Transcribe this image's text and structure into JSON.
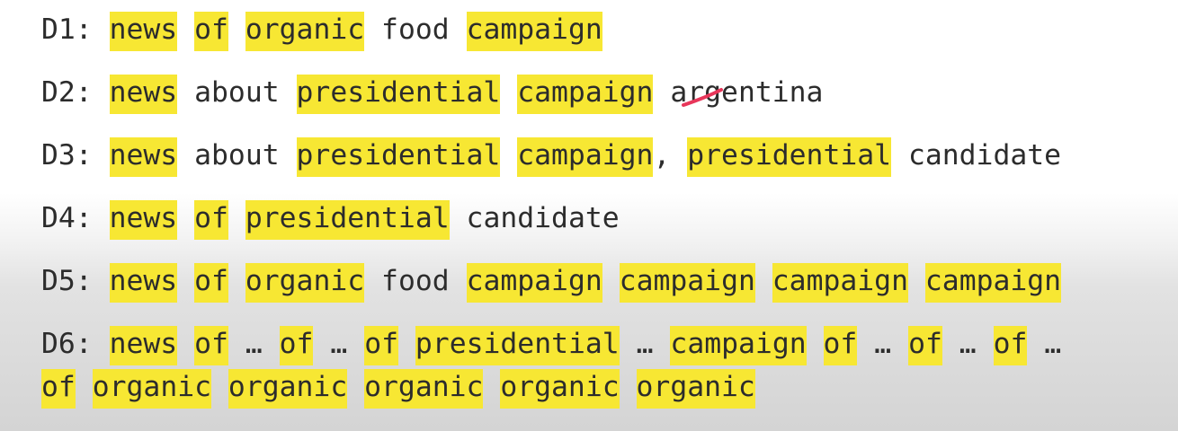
{
  "lines": [
    {
      "label": "D1:",
      "tokens": [
        {
          "t": "news",
          "hl": true
        },
        {
          "t": "of",
          "hl": true
        },
        {
          "t": "organic",
          "hl": true
        },
        {
          "t": "food",
          "hl": false
        },
        {
          "t": "campaign",
          "hl": true
        }
      ]
    },
    {
      "label": "D2:",
      "tokens": [
        {
          "t": "news",
          "hl": true
        },
        {
          "t": "about",
          "hl": false
        },
        {
          "t": "presidential",
          "hl": true
        },
        {
          "t": "campaign",
          "hl": true
        },
        {
          "t": "argentina",
          "hl": false
        }
      ]
    },
    {
      "label": "D3:",
      "tokens": [
        {
          "t": "news",
          "hl": true
        },
        {
          "t": "about",
          "hl": false
        },
        {
          "t": "presidential",
          "hl": true
        },
        {
          "t": "campaign",
          "hl": true,
          "suffix": ","
        },
        {
          "t": "presidential",
          "hl": true
        },
        {
          "t": "candidate",
          "hl": false
        }
      ]
    },
    {
      "label": "D4:",
      "tokens": [
        {
          "t": "news",
          "hl": true
        },
        {
          "t": "of",
          "hl": true
        },
        {
          "t": "presidential",
          "hl": true
        },
        {
          "t": "candidate",
          "hl": false
        }
      ]
    },
    {
      "label": "D5:",
      "tokens": [
        {
          "t": "news",
          "hl": true
        },
        {
          "t": "of",
          "hl": true
        },
        {
          "t": "organic",
          "hl": true
        },
        {
          "t": "food",
          "hl": false
        },
        {
          "t": "campaign",
          "hl": true
        },
        {
          "t": "campaign",
          "hl": true
        },
        {
          "t": "campaign",
          "hl": true
        },
        {
          "t": "campaign",
          "hl": true
        }
      ]
    },
    {
      "label": "D6:",
      "tokens": [
        {
          "t": "news",
          "hl": true
        },
        {
          "t": "of",
          "hl": true
        },
        {
          "t": "…",
          "hl": false
        },
        {
          "t": "of",
          "hl": true
        },
        {
          "t": "…",
          "hl": false
        },
        {
          "t": "of",
          "hl": true
        },
        {
          "t": "presidential",
          "hl": true
        },
        {
          "t": "…",
          "hl": false
        },
        {
          "t": "campaign",
          "hl": true
        },
        {
          "t": "of",
          "hl": true
        },
        {
          "t": "…",
          "hl": false
        },
        {
          "t": "of",
          "hl": true
        },
        {
          "t": "…",
          "hl": false
        },
        {
          "t": "of",
          "hl": true
        },
        {
          "t": "…",
          "hl": false
        }
      ]
    },
    {
      "label": "",
      "tokens": [
        {
          "t": "of",
          "hl": true
        },
        {
          "t": "organic",
          "hl": true
        },
        {
          "t": "organic",
          "hl": true
        },
        {
          "t": "organic",
          "hl": true
        },
        {
          "t": "organic",
          "hl": true
        },
        {
          "t": "organic",
          "hl": true
        }
      ]
    }
  ],
  "colors": {
    "highlight": "#f7e733",
    "text": "#2c2c2c",
    "annotation_stroke": "#e8365a"
  },
  "annotation": {
    "icon": "pen-stroke-mark"
  }
}
